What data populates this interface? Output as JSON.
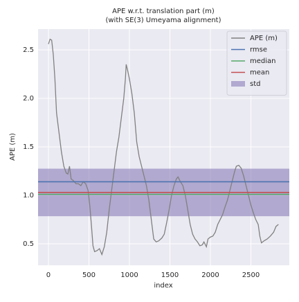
{
  "chart_data": {
    "type": "line",
    "title": "APE w.r.t. translation part (m)",
    "subtitle": "(with SE(3) Umeyama alignment)",
    "x_label": "index",
    "y_label": "APE (m)",
    "xlim": [
      -128,
      2974
    ],
    "ylim": [
      0.279,
      2.714
    ],
    "xticks": [
      0,
      500,
      1000,
      1500,
      2000,
      2500
    ],
    "yticks": [
      {
        "value": 0.5,
        "label": "0.5"
      },
      {
        "value": 1.0,
        "label": "1.0"
      },
      {
        "value": 1.5,
        "label": "1.5"
      },
      {
        "value": 2.0,
        "label": "2.0"
      },
      {
        "value": 2.5,
        "label": "2.5"
      }
    ],
    "grid": true,
    "legend": "upper right",
    "series": [
      {
        "name": "APE (m)",
        "color": "#808080",
        "x": [
          0,
          20,
          40,
          60,
          80,
          100,
          130,
          160,
          190,
          220,
          240,
          260,
          280,
          310,
          340,
          370,
          400,
          430,
          460,
          490,
          510,
          530,
          550,
          570,
          600,
          630,
          660,
          690,
          720,
          750,
          780,
          810,
          840,
          870,
          900,
          930,
          950,
          960,
          980,
          1000,
          1030,
          1060,
          1090,
          1120,
          1150,
          1180,
          1210,
          1240,
          1270,
          1300,
          1330,
          1360,
          1400,
          1430,
          1460,
          1490,
          1520,
          1550,
          1580,
          1600,
          1630,
          1660,
          1690,
          1720,
          1750,
          1780,
          1810,
          1840,
          1870,
          1900,
          1920,
          1950,
          1970,
          2000,
          2030,
          2060,
          2090,
          2120,
          2150,
          2180,
          2210,
          2240,
          2270,
          2300,
          2320,
          2350,
          2380,
          2410,
          2440,
          2470,
          2500,
          2530,
          2560,
          2590,
          2610,
          2630,
          2660,
          2700,
          2740,
          2780,
          2810,
          2840
        ],
        "values": [
          2.56,
          2.61,
          2.6,
          2.45,
          2.2,
          1.85,
          1.65,
          1.45,
          1.3,
          1.23,
          1.22,
          1.3,
          1.17,
          1.15,
          1.12,
          1.12,
          1.1,
          1.14,
          1.12,
          1.05,
          0.9,
          0.7,
          0.48,
          0.42,
          0.43,
          0.45,
          0.39,
          0.47,
          0.62,
          0.85,
          1.05,
          1.25,
          1.45,
          1.6,
          1.8,
          2.0,
          2.2,
          2.35,
          2.28,
          2.2,
          2.05,
          1.85,
          1.55,
          1.4,
          1.3,
          1.2,
          1.1,
          0.95,
          0.75,
          0.55,
          0.52,
          0.53,
          0.56,
          0.6,
          0.72,
          0.85,
          1.0,
          1.1,
          1.17,
          1.19,
          1.14,
          1.1,
          1.0,
          0.85,
          0.7,
          0.6,
          0.55,
          0.52,
          0.48,
          0.49,
          0.52,
          0.47,
          0.55,
          0.57,
          0.58,
          0.62,
          0.7,
          0.75,
          0.8,
          0.88,
          0.95,
          1.05,
          1.15,
          1.25,
          1.3,
          1.31,
          1.28,
          1.2,
          1.1,
          1.0,
          0.9,
          0.82,
          0.75,
          0.7,
          0.58,
          0.51,
          0.53,
          0.55,
          0.58,
          0.62,
          0.68,
          0.7
        ]
      }
    ],
    "reference_lines": [
      {
        "name": "rmse",
        "color": "#4c72b0",
        "value": 1.14
      },
      {
        "name": "median",
        "color": "#55a868",
        "value": 1.01
      },
      {
        "name": "mean",
        "color": "#c44e52",
        "value": 1.03
      }
    ],
    "std": {
      "name": "std",
      "color": "#8172b2",
      "value": 0.245
    }
  }
}
